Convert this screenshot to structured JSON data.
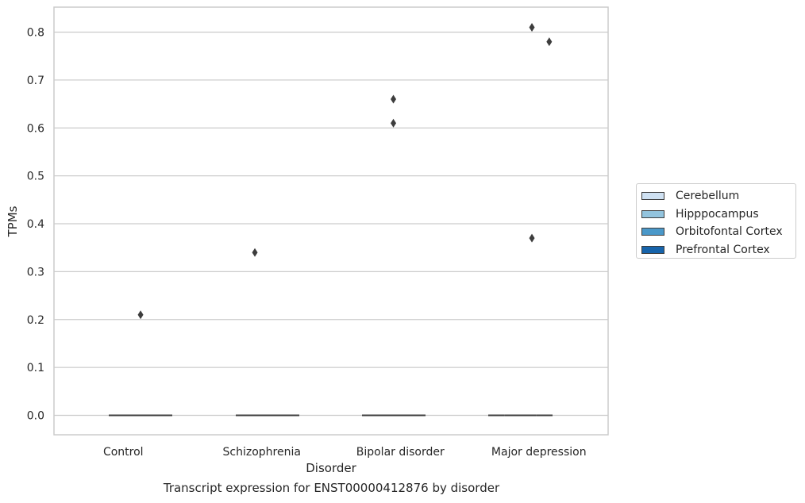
{
  "chart_data": {
    "type": "box",
    "title": "",
    "caption": "Transcript expression for ENST00000412876 by disorder",
    "xlabel": "Disorder",
    "ylabel": "TPMs",
    "categories": [
      "Control",
      "Schizophrenia",
      "Bipolar disorder",
      "Major depression"
    ],
    "yticks": [
      "0.0",
      "0.1",
      "0.2",
      "0.3",
      "0.4",
      "0.5",
      "0.6",
      "0.7",
      "0.8"
    ],
    "ylim": [
      -0.04,
      0.85
    ],
    "grid": true,
    "legend_position": "right",
    "series": [
      {
        "name": "Cerebellum",
        "color": "#cfe1f2",
        "median": [
          0,
          0,
          0,
          0
        ]
      },
      {
        "name": "Hipppocampus",
        "color": "#93c4de",
        "median": [
          0,
          0,
          0,
          0
        ]
      },
      {
        "name": "Orbitofontal Cortex",
        "color": "#4a98c9",
        "median": [
          0,
          0,
          0,
          0
        ]
      },
      {
        "name": "Prefrontal Cortex",
        "color": "#1764ab",
        "median": [
          0,
          0,
          0,
          0
        ]
      }
    ],
    "outliers": [
      {
        "category": "Control",
        "offset": 0.125,
        "value": 0.21
      },
      {
        "category": "Schizophrenia",
        "offset": -0.05,
        "value": 0.34
      },
      {
        "category": "Bipolar disorder",
        "offset": -0.05,
        "value": 0.66
      },
      {
        "category": "Bipolar disorder",
        "offset": -0.05,
        "value": 0.61
      },
      {
        "category": "Major depression",
        "offset": -0.05,
        "value": 0.81
      },
      {
        "category": "Major depression",
        "offset": 0.075,
        "value": 0.78
      },
      {
        "category": "Major depression",
        "offset": -0.05,
        "value": 0.37
      }
    ]
  }
}
